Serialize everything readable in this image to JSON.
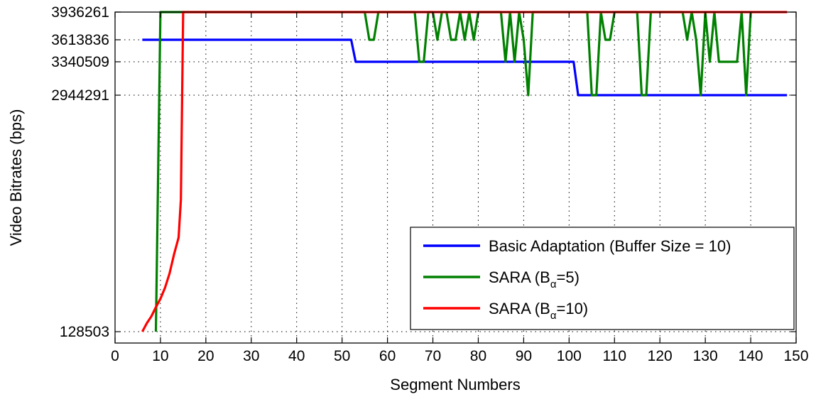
{
  "chart_data": {
    "type": "line",
    "title": "",
    "xlabel": "Segment Numbers",
    "ylabel": "Video Bitrates (bps)",
    "xlim": [
      0,
      150
    ],
    "ylim": [
      128503,
      3936261
    ],
    "grid": true,
    "x_ticks": [
      0,
      10,
      20,
      30,
      40,
      50,
      60,
      70,
      80,
      90,
      100,
      110,
      120,
      130,
      140,
      150
    ],
    "y_ticks": [
      128503,
      2944291,
      3340509,
      3613836,
      3936261
    ],
    "legend_position": "lower-right",
    "series": [
      {
        "legend_text": "Basic Adaptation (Buffer Size = 10)",
        "color": "#0000ff",
        "points": [
          [
            6,
            3613836
          ],
          [
            52,
            3613836
          ],
          [
            53,
            3340509
          ],
          [
            101,
            3340509
          ],
          [
            102,
            2944291
          ],
          [
            148,
            2944291
          ]
        ]
      },
      {
        "legend_prefix": "SARA (B",
        "legend_subscript": "α",
        "legend_suffix": "=5)",
        "color": "#008000",
        "points": [
          [
            9,
            128503
          ],
          [
            10,
            3936261
          ],
          [
            55,
            3936261
          ],
          [
            56,
            3613836
          ],
          [
            57,
            3613836
          ],
          [
            58,
            3936261
          ],
          [
            66,
            3936261
          ],
          [
            67,
            3340509
          ],
          [
            68,
            3340509
          ],
          [
            69,
            3936261
          ],
          [
            70,
            3936261
          ],
          [
            71,
            3613836
          ],
          [
            72,
            3936261
          ],
          [
            73,
            3936261
          ],
          [
            74,
            3613836
          ],
          [
            75,
            3613836
          ],
          [
            76,
            3936261
          ],
          [
            77,
            3613836
          ],
          [
            78,
            3936261
          ],
          [
            79,
            3613836
          ],
          [
            80,
            3936261
          ],
          [
            85,
            3936261
          ],
          [
            86,
            3340509
          ],
          [
            87,
            3936261
          ],
          [
            88,
            3340509
          ],
          [
            89,
            3936261
          ],
          [
            90,
            3613836
          ],
          [
            91,
            2944291
          ],
          [
            92,
            3936261
          ],
          [
            104,
            3936261
          ],
          [
            105,
            2944291
          ],
          [
            106,
            2944291
          ],
          [
            107,
            3936261
          ],
          [
            108,
            3613836
          ],
          [
            109,
            3613836
          ],
          [
            110,
            3936261
          ],
          [
            115,
            3936261
          ],
          [
            116,
            2944291
          ],
          [
            117,
            2944291
          ],
          [
            118,
            3936261
          ],
          [
            125,
            3936261
          ],
          [
            126,
            3613836
          ],
          [
            127,
            3936261
          ],
          [
            128,
            3613836
          ],
          [
            129,
            2944291
          ],
          [
            130,
            3936261
          ],
          [
            131,
            3340509
          ],
          [
            132,
            3936261
          ],
          [
            133,
            3340509
          ],
          [
            137,
            3340509
          ],
          [
            138,
            3936261
          ],
          [
            139,
            2944291
          ],
          [
            140,
            3936261
          ]
        ]
      },
      {
        "legend_prefix": "SARA (B",
        "legend_subscript": "α",
        "legend_suffix": "=10)",
        "color": "#ff0000",
        "points": [
          [
            6,
            128503
          ],
          [
            7,
            230000
          ],
          [
            8,
            310000
          ],
          [
            9,
            420000
          ],
          [
            10,
            520000
          ],
          [
            11,
            650000
          ],
          [
            12,
            820000
          ],
          [
            13,
            1050000
          ],
          [
            14,
            1250000
          ],
          [
            14.5,
            1700000
          ],
          [
            15,
            3936261
          ],
          [
            148,
            3936261
          ]
        ]
      }
    ]
  }
}
